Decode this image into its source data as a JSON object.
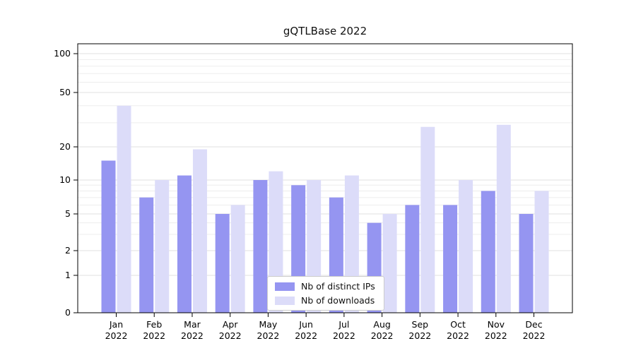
{
  "title": "gQTLBase 2022",
  "chart_data": {
    "type": "bar",
    "title": "gQTLBase 2022",
    "xlabel": "",
    "ylabel": "",
    "categories": [
      "Jan",
      "Feb",
      "Mar",
      "Apr",
      "May",
      "Jun",
      "Jul",
      "Aug",
      "Sep",
      "Oct",
      "Nov",
      "Dec"
    ],
    "year_label": "2022",
    "series": [
      {
        "name": "Nb of distinct IPs",
        "color": "#9595f1",
        "values": [
          15,
          7,
          11,
          5,
          10,
          9,
          7,
          4,
          6,
          6,
          8,
          5
        ]
      },
      {
        "name": "Nb of downloads",
        "color": "#dcdcf9",
        "values": [
          40,
          10,
          19,
          6,
          12,
          10,
          11,
          5,
          28,
          10,
          29,
          8
        ]
      }
    ],
    "yticks": [
      0,
      1,
      2,
      5,
      10,
      20,
      50,
      100
    ],
    "minor_gridlines": [
      3,
      4,
      6,
      7,
      8,
      9,
      30,
      40,
      60,
      70,
      80,
      90
    ],
    "scale": "symlog",
    "ylim": [
      0,
      100
    ],
    "grid": "horizontal",
    "legend_position": "bottom-center"
  },
  "legend": {
    "items": [
      {
        "label": "Nb of distinct IPs"
      },
      {
        "label": "Nb of downloads"
      }
    ]
  }
}
